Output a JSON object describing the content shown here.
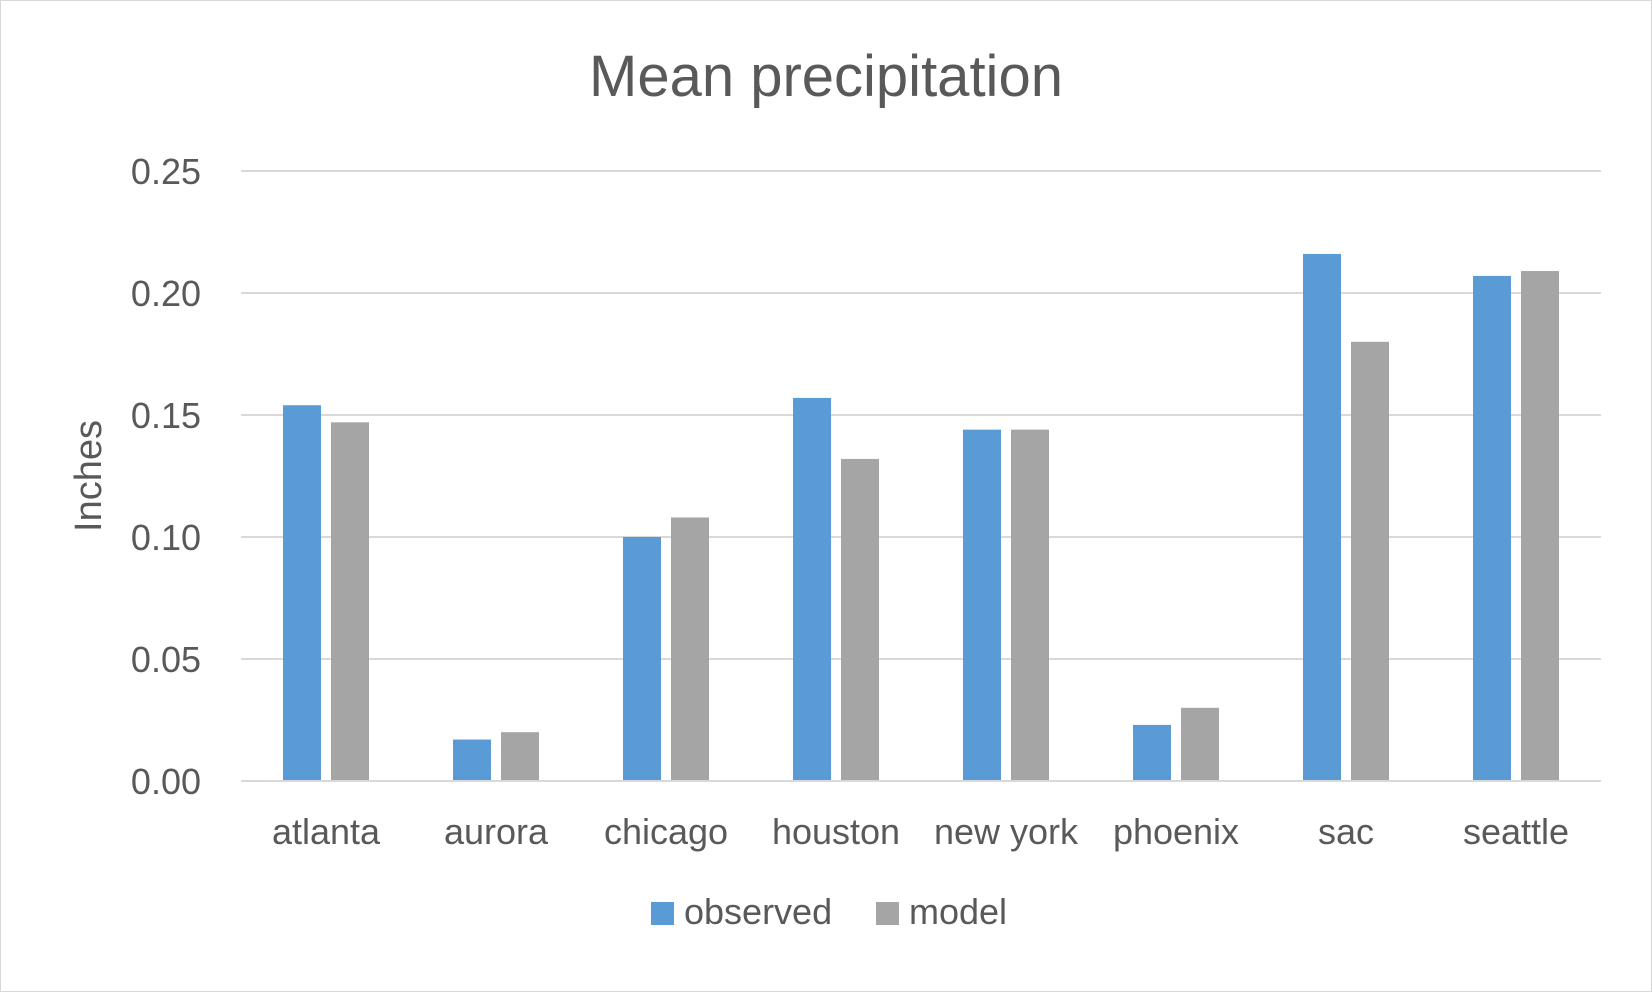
{
  "chart_data": {
    "type": "bar",
    "title": "Mean precipitation",
    "xlabel": "",
    "ylabel": "Inches",
    "ylim": [
      0,
      0.25
    ],
    "yticks": [
      "0.00",
      "0.05",
      "0.10",
      "0.15",
      "0.20",
      "0.25"
    ],
    "ytick_values": [
      0,
      0.05,
      0.1,
      0.15,
      0.2,
      0.25
    ],
    "grid": true,
    "legend_position": "bottom",
    "categories": [
      "atlanta",
      "aurora",
      "chicago",
      "houston",
      "new york",
      "phoenix",
      "sac",
      "seattle"
    ],
    "series": [
      {
        "name": "observed",
        "color": "#5b9bd5",
        "values": [
          0.154,
          0.017,
          0.1,
          0.157,
          0.144,
          0.023,
          0.216,
          0.207
        ]
      },
      {
        "name": "model",
        "color": "#a5a5a5",
        "values": [
          0.147,
          0.02,
          0.108,
          0.132,
          0.144,
          0.03,
          0.18,
          0.209
        ]
      }
    ]
  }
}
